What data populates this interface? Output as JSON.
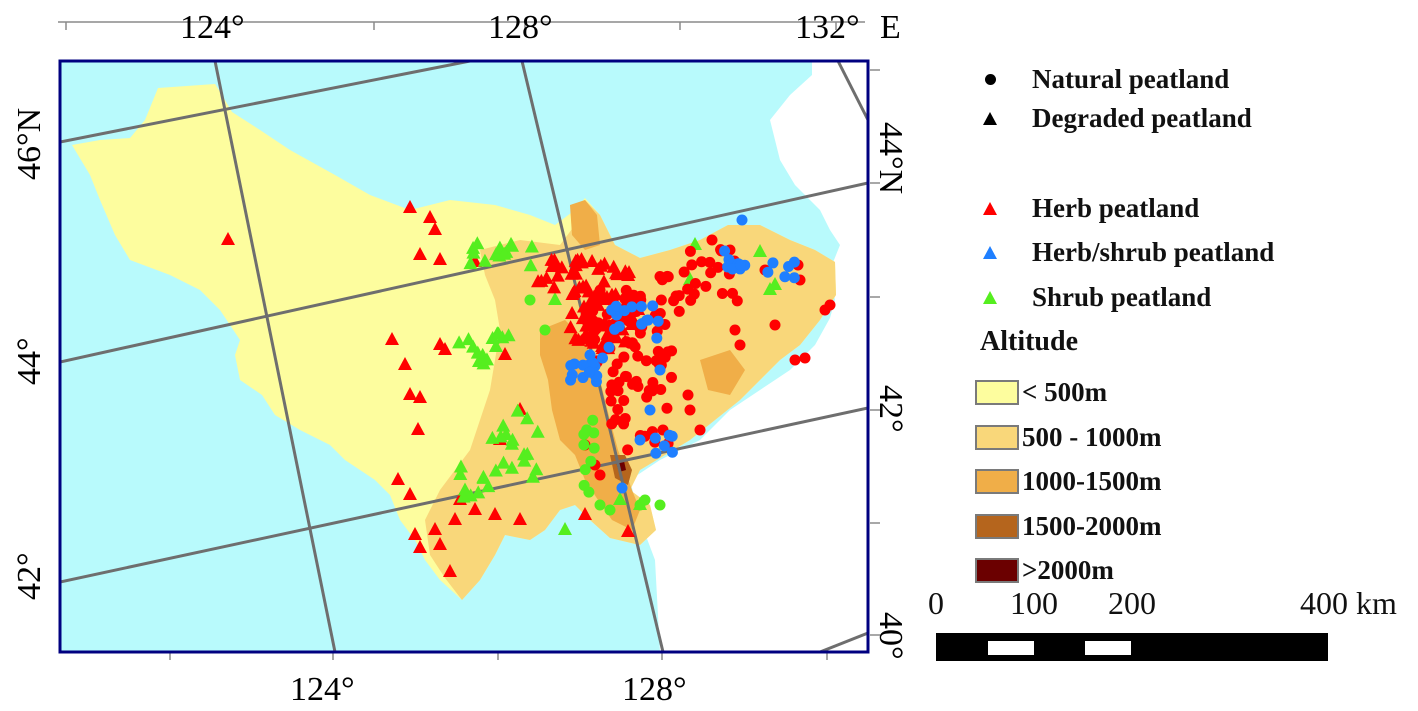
{
  "top_lon_labels": [
    "124°",
    "128°",
    "132°",
    "E"
  ],
  "bottom_lon_labels": [
    "124°",
    "128°"
  ],
  "left_lat_labels": [
    "46°N",
    "44°",
    "42°"
  ],
  "right_lat_labels": [
    "44°N",
    "42°",
    "40°"
  ],
  "legend": {
    "symbols": [
      {
        "shape": "circle",
        "color": "#000000",
        "label": "Natural peatland"
      },
      {
        "shape": "triangle",
        "color": "#000000",
        "label": "Degraded peatland"
      }
    ],
    "types": [
      {
        "shape": "triangle",
        "color": "#ff0000",
        "label": "Herb peatland"
      },
      {
        "shape": "triangle",
        "color": "#1f7fff",
        "label": "Herb/shrub peatland"
      },
      {
        "shape": "triangle",
        "color": "#55ee1f",
        "label": "Shrub peatland"
      }
    ],
    "altitude_title": "Altitude",
    "altitude_classes": [
      {
        "label": "< 500m",
        "color": "#fdfd9e"
      },
      {
        "label": "500 - 1000m",
        "color": "#f9d77a"
      },
      {
        "label": "1000-1500m",
        "color": "#f0ae48"
      },
      {
        "label": "1500-2000m",
        "color": "#b5651d"
      },
      {
        "label": ">2000m",
        "color": "#6b0000"
      }
    ]
  },
  "scale_bar": {
    "labels": [
      "0",
      "100",
      "200",
      "400 km"
    ]
  },
  "colors": {
    "sea_background": "#b8fafc",
    "frame": "#000080",
    "graticule": "#6e6e6e"
  }
}
